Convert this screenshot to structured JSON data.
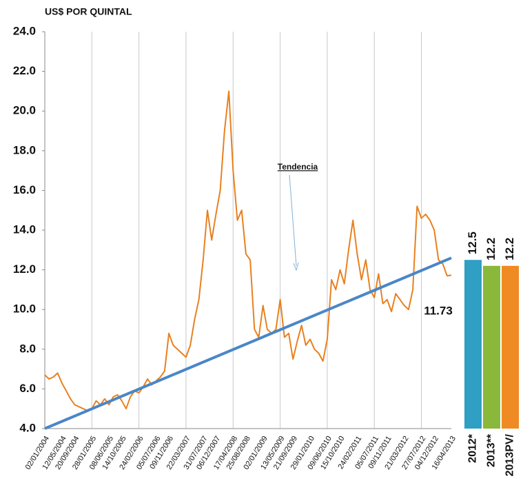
{
  "chart_data": {
    "type": "line",
    "title": "US$ POR QUINTAL",
    "categories": [
      "02/01/2004",
      null,
      null,
      null,
      "12/05/2004",
      null,
      null,
      "20/09/2004",
      null,
      null,
      null,
      "28/01/2005",
      null,
      null,
      null,
      "08/06/2005",
      null,
      null,
      "14/10/2005",
      null,
      null,
      null,
      "24/02/2006",
      null,
      null,
      null,
      "05/07/2006",
      null,
      null,
      "09/11/2006",
      null,
      null,
      null,
      "22/03/2007",
      null,
      null,
      null,
      "31/07/2007",
      null,
      null,
      "06/12/2007",
      null,
      null,
      null,
      "17/04/2008",
      null,
      null,
      "25/08/2008",
      null,
      null,
      null,
      "02/01/2009",
      null,
      null,
      null,
      "13/05/2009",
      null,
      null,
      "21/09/2009",
      null,
      null,
      null,
      "29/01/2010",
      null,
      null,
      null,
      "09/06/2010",
      null,
      null,
      "15/10/2010",
      null,
      null,
      null,
      "24/02/2011",
      null,
      null,
      null,
      "05/07/2011",
      null,
      null,
      "09/11/2011",
      null,
      null,
      null,
      "21/03/2012",
      null,
      null,
      null,
      "27/07/2012",
      null,
      null,
      "04/12/2012",
      null,
      null,
      null,
      "16/04/2013"
    ],
    "values": [
      6.7,
      6.5,
      6.6,
      6.8,
      6.3,
      5.9,
      5.5,
      5.2,
      5.1,
      5.0,
      4.9,
      5.0,
      5.4,
      5.2,
      5.5,
      5.2,
      5.6,
      5.7,
      5.4,
      5.0,
      5.6,
      5.9,
      5.8,
      6.1,
      6.5,
      6.2,
      6.4,
      6.6,
      6.9,
      8.8,
      8.2,
      8.0,
      7.8,
      7.6,
      8.2,
      9.5,
      10.5,
      12.5,
      15.0,
      13.5,
      14.8,
      16.0,
      19.0,
      21.0,
      17.0,
      14.5,
      15.0,
      12.8,
      12.5,
      9.0,
      8.6,
      10.2,
      9.0,
      8.8,
      9.0,
      10.5,
      8.6,
      8.8,
      7.5,
      8.4,
      9.2,
      8.2,
      8.5,
      8.0,
      7.8,
      7.4,
      8.5,
      11.5,
      11.0,
      12.0,
      11.3,
      13.0,
      14.5,
      12.8,
      11.5,
      12.5,
      11.0,
      10.6,
      11.8,
      10.3,
      10.5,
      9.9,
      10.8,
      10.5,
      10.2,
      10.0,
      11.0,
      15.2,
      14.6,
      14.8,
      14.5,
      14.0,
      12.5,
      12.3,
      11.7,
      11.73
    ],
    "color": "#e8801e",
    "trend": {
      "label": "Tendencia",
      "values": [
        4.0,
        12.6
      ],
      "color": "#4a86c8"
    },
    "ylim": [
      4,
      24
    ],
    "yticks": [
      {
        "value": 4,
        "label": "4.0"
      },
      {
        "value": 6,
        "label": "6.0"
      },
      {
        "value": 8,
        "label": "8.0"
      },
      {
        "value": 10,
        "label": "10.0"
      },
      {
        "value": 12,
        "label": "12.0"
      },
      {
        "value": 14,
        "label": "14.0"
      },
      {
        "value": 16,
        "label": "16.0"
      },
      {
        "value": 18,
        "label": "18.0"
      },
      {
        "value": 20,
        "label": "20.0"
      },
      {
        "value": 22,
        "label": "22.0"
      },
      {
        "value": 24,
        "label": "24.0"
      }
    ],
    "grid": true,
    "bars": {
      "categories": [
        "2012*",
        "2013**",
        "2013PV/"
      ],
      "values": [
        12.5,
        12.2,
        12.2
      ],
      "colors": [
        "#2f9fc4",
        "#8ab83a",
        "#f08a22"
      ]
    }
  }
}
